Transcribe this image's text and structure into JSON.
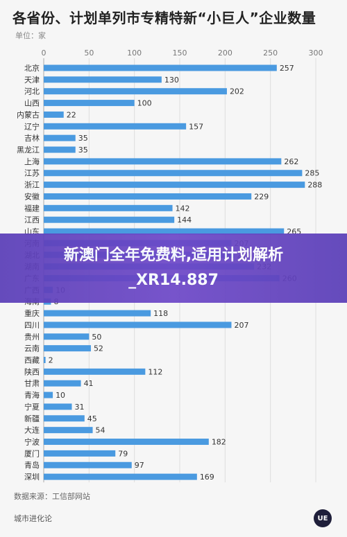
{
  "header": {
    "title": "各省份、计划单列市专精特新“小巨人”企业数量",
    "unit": "单位：家"
  },
  "footer": {
    "source": "数据来源：工信部网站",
    "brand": "城市进化论",
    "logo_text": "UE"
  },
  "banner": {
    "text": "新澳门全年免费料,适用计划解析_XR14.887"
  },
  "colors": {
    "bar": "#4a9ae0",
    "axis_text": "#777777",
    "grid": "#dddddd"
  },
  "chart_data": {
    "type": "bar",
    "orientation": "horizontal",
    "title": "各省份、计划单列市专精特新“小巨人”企业数量",
    "xlim": [
      0,
      300
    ],
    "xticks": [
      0,
      50,
      100,
      150,
      200,
      250,
      300
    ],
    "grid": true,
    "categories": [
      "北京",
      "天津",
      "河北",
      "山西",
      "内蒙古",
      "辽宁",
      "吉林",
      "黑龙江",
      "上海",
      "江苏",
      "浙江",
      "安徽",
      "福建",
      "江西",
      "山东",
      "河南",
      "湖北",
      "湖南",
      "广东",
      "广西",
      "海南",
      "重庆",
      "四川",
      "贵州",
      "云南",
      "西藏",
      "陕西",
      "甘肃",
      "青海",
      "宁夏",
      "新疆",
      "大连",
      "宁波",
      "厦门",
      "青岛",
      "深圳"
    ],
    "values": [
      257,
      130,
      202,
      100,
      22,
      157,
      35,
      35,
      262,
      285,
      288,
      229,
      142,
      144,
      265,
      207,
      210,
      232,
      260,
      10,
      8,
      118,
      207,
      50,
      52,
      2,
      112,
      41,
      10,
      31,
      45,
      54,
      182,
      79,
      97,
      169
    ]
  }
}
